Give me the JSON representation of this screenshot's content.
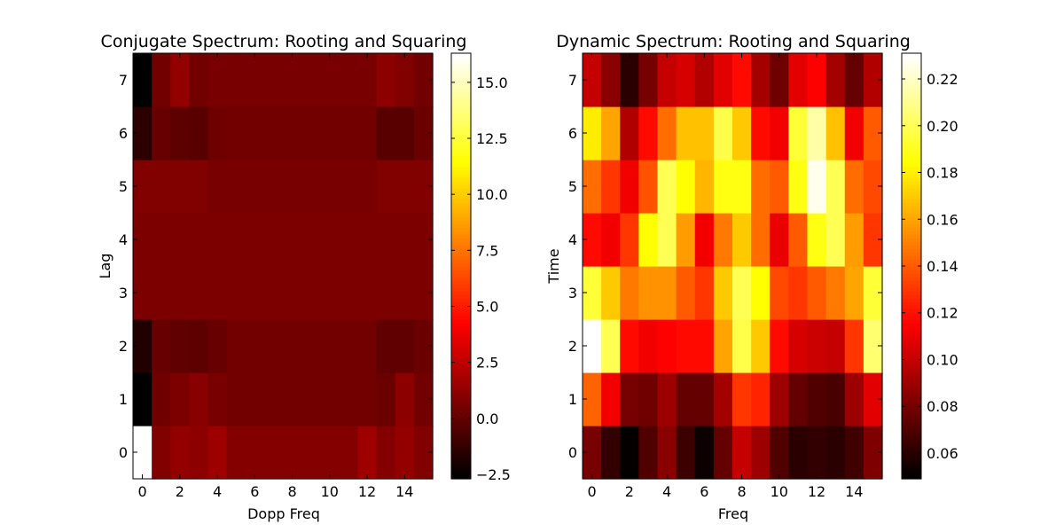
{
  "chart_data": [
    {
      "type": "heatmap",
      "title": "Conjugate Spectrum: Rooting and Squaring",
      "xlabel": "Dopp Freq",
      "ylabel": "Lag",
      "x_ticks": [
        0,
        2,
        4,
        6,
        8,
        10,
        12,
        14
      ],
      "y_ticks": [
        0,
        1,
        2,
        3,
        4,
        5,
        6,
        7
      ],
      "xlim": [
        -0.5,
        15.5
      ],
      "ylim": [
        -0.5,
        7.5
      ],
      "colormap": "hot",
      "colorbar": {
        "min": -2.7,
        "max": 16.3,
        "ticks": [
          -2.5,
          0.0,
          2.5,
          5.0,
          7.5,
          10.0,
          12.5,
          15.0
        ],
        "tick_labels": [
          "−2.5",
          "0.0",
          "2.5",
          "5.0",
          "7.5",
          "10.0",
          "12.5",
          "15.0"
        ]
      },
      "values": [
        [
          16.3,
          0.8,
          1.3,
          1.1,
          1.6,
          0.9,
          0.9,
          0.9,
          0.9,
          0.9,
          0.9,
          0.9,
          1.6,
          0.9,
          1.3,
          0.8
        ],
        [
          -2.7,
          0.3,
          0.7,
          1.0,
          0.6,
          0.4,
          0.4,
          0.4,
          0.4,
          0.4,
          0.4,
          0.4,
          0.4,
          0.2,
          1.1,
          0.4
        ],
        [
          -1.8,
          0.1,
          -0.1,
          -0.2,
          0.1,
          0.4,
          0.4,
          0.4,
          0.4,
          0.4,
          0.4,
          0.4,
          0.4,
          -0.1,
          -0.1,
          0.2
        ],
        [
          0.7,
          0.7,
          0.7,
          0.7,
          0.7,
          0.7,
          0.7,
          0.7,
          0.7,
          0.7,
          0.7,
          0.7,
          0.7,
          0.7,
          0.7,
          0.7
        ],
        [
          0.7,
          0.7,
          0.7,
          0.7,
          0.7,
          0.7,
          0.7,
          0.7,
          0.7,
          0.7,
          0.7,
          0.7,
          0.7,
          0.7,
          0.7,
          0.7
        ],
        [
          0.8,
          0.8,
          0.8,
          0.8,
          0.6,
          0.6,
          0.6,
          0.6,
          0.6,
          0.6,
          0.6,
          0.6,
          0.6,
          0.8,
          0.8,
          0.8
        ],
        [
          -1.5,
          0.1,
          -0.2,
          -0.3,
          0.3,
          0.4,
          0.4,
          0.4,
          0.4,
          0.4,
          0.4,
          0.4,
          0.4,
          -0.3,
          -0.3,
          0.2
        ],
        [
          -2.7,
          0.4,
          1.3,
          0.4,
          0.6,
          0.6,
          0.6,
          0.6,
          0.6,
          0.6,
          0.6,
          0.6,
          0.6,
          1.1,
          0.8,
          0.4
        ]
      ]
    },
    {
      "type": "heatmap",
      "title": "Dynamic Spectrum: Rooting and Squaring",
      "xlabel": "Freq",
      "ylabel": "Time",
      "x_ticks": [
        0,
        2,
        4,
        6,
        8,
        10,
        12,
        14
      ],
      "y_ticks": [
        0,
        1,
        2,
        3,
        4,
        5,
        6,
        7
      ],
      "xlim": [
        -0.5,
        15.5
      ],
      "ylim": [
        -0.5,
        7.5
      ],
      "colormap": "hot",
      "colorbar": {
        "min": 0.049,
        "max": 0.231,
        "ticks": [
          0.06,
          0.08,
          0.1,
          0.12,
          0.14,
          0.16,
          0.18,
          0.2,
          0.22
        ],
        "tick_labels": [
          "0.06",
          "0.08",
          "0.10",
          "0.12",
          "0.14",
          "0.16",
          "0.18",
          "0.20",
          "0.22"
        ]
      },
      "values": [
        [
          0.08,
          0.062,
          0.05,
          0.07,
          0.085,
          0.065,
          0.052,
          0.075,
          0.1,
          0.09,
          0.07,
          0.06,
          0.062,
          0.06,
          0.066,
          0.082
        ],
        [
          0.142,
          0.112,
          0.08,
          0.078,
          0.09,
          0.075,
          0.075,
          0.092,
          0.13,
          0.125,
          0.09,
          0.075,
          0.07,
          0.068,
          0.09,
          0.108
        ],
        [
          0.231,
          0.2,
          0.118,
          0.112,
          0.115,
          0.118,
          0.118,
          0.16,
          0.198,
          0.17,
          0.118,
          0.105,
          0.102,
          0.1,
          0.13,
          0.205
        ],
        [
          0.195,
          0.17,
          0.148,
          0.155,
          0.155,
          0.14,
          0.13,
          0.17,
          0.2,
          0.185,
          0.135,
          0.13,
          0.14,
          0.148,
          0.16,
          0.195
        ],
        [
          0.118,
          0.112,
          0.13,
          0.185,
          0.2,
          0.158,
          0.112,
          0.148,
          0.17,
          0.145,
          0.11,
          0.14,
          0.188,
          0.2,
          0.158,
          0.13
        ],
        [
          0.145,
          0.13,
          0.112,
          0.138,
          0.2,
          0.185,
          0.165,
          0.188,
          0.188,
          0.145,
          0.14,
          0.188,
          0.228,
          0.2,
          0.145,
          0.135
        ],
        [
          0.18,
          0.16,
          0.095,
          0.118,
          0.145,
          0.168,
          0.168,
          0.198,
          0.17,
          0.118,
          0.112,
          0.195,
          0.215,
          0.168,
          0.112,
          0.14
        ],
        [
          0.1,
          0.085,
          0.06,
          0.08,
          0.1,
          0.105,
          0.095,
          0.108,
          0.118,
          0.092,
          0.078,
          0.108,
          0.115,
          0.092,
          0.075,
          0.095
        ]
      ]
    }
  ]
}
